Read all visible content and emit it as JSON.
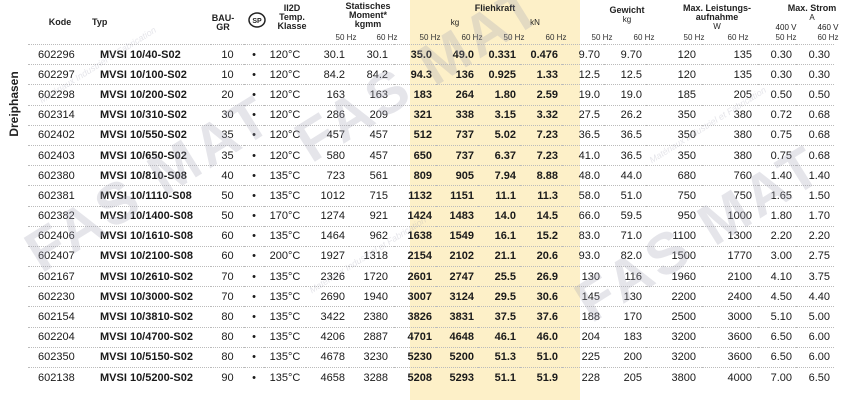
{
  "side_label": "Dreiphasen",
  "headers": {
    "kode": "Kode",
    "typ": "Typ",
    "bau": "BAU-\nGR",
    "atex": "II2D\nTemp.\nKlasse",
    "static": "Statisches\nMoment*\nkgmm",
    "flieh": "Fliehkraft",
    "kg": "kg",
    "kn": "kN",
    "gewicht": "Gewicht",
    "gewicht_unit": "kg",
    "leistung": "Max. Leistungs-\naufnahme",
    "leistung_unit": "W",
    "strom": "Max. Strom",
    "strom_unit": "A",
    "v400": "400 V",
    "v460": "460 V",
    "hz50": "50 Hz",
    "hz60": "60 Hz"
  },
  "cert_icon": "csa-certification-icon",
  "watermark": "FAS MAT",
  "watermark_small": "Matériaux Industriel et Fabrication",
  "rows": [
    [
      "602296",
      "MVSI 10/40-S02",
      "10",
      "•",
      "120°C",
      "30.1",
      "30.1",
      "35.0",
      "49.0",
      "0.331",
      "0.476",
      "9.70",
      "9.70",
      "120",
      "135",
      "0.30",
      "0.30"
    ],
    [
      "602297",
      "MVSI 10/100-S02",
      "10",
      "•",
      "120°C",
      "84.2",
      "84.2",
      "94.3",
      "136",
      "0.925",
      "1.33",
      "12.5",
      "12.5",
      "120",
      "135",
      "0.30",
      "0.30"
    ],
    [
      "602298",
      "MVSI 10/200-S02",
      "20",
      "•",
      "120°C",
      "163",
      "163",
      "183",
      "264",
      "1.80",
      "2.59",
      "19.0",
      "19.0",
      "185",
      "205",
      "0.50",
      "0.50"
    ],
    [
      "602314",
      "MVSI 10/310-S02",
      "30",
      "•",
      "120°C",
      "286",
      "209",
      "321",
      "338",
      "3.15",
      "3.32",
      "27.5",
      "26.2",
      "350",
      "380",
      "0.72",
      "0.68"
    ],
    [
      "602402",
      "MVSI 10/550-S02",
      "35",
      "•",
      "120°C",
      "457",
      "457",
      "512",
      "737",
      "5.02",
      "7.23",
      "36.5",
      "36.5",
      "350",
      "380",
      "0.75",
      "0.68"
    ],
    [
      "602403",
      "MVSI 10/650-S02",
      "35",
      "•",
      "120°C",
      "580",
      "457",
      "650",
      "737",
      "6.37",
      "7.23",
      "41.0",
      "36.5",
      "350",
      "380",
      "0.75",
      "0.68"
    ],
    [
      "602380",
      "MVSI 10/810-S08",
      "40",
      "•",
      "135°C",
      "723",
      "561",
      "809",
      "905",
      "7.94",
      "8.88",
      "48.0",
      "44.0",
      "680",
      "760",
      "1.40",
      "1.40"
    ],
    [
      "602381",
      "MVSI 10/1110-S08",
      "50",
      "•",
      "135°C",
      "1012",
      "715",
      "1132",
      "1151",
      "11.1",
      "11.3",
      "58.0",
      "51.0",
      "750",
      "750",
      "1.65",
      "1.50"
    ],
    [
      "602382",
      "MVSI 10/1400-S08",
      "50",
      "•",
      "170°C",
      "1274",
      "921",
      "1424",
      "1483",
      "14.0",
      "14.5",
      "66.0",
      "59.5",
      "950",
      "1000",
      "1.80",
      "1.70"
    ],
    [
      "602406",
      "MVSI 10/1610-S08",
      "60",
      "•",
      "135°C",
      "1464",
      "962",
      "1638",
      "1549",
      "16.1",
      "15.2",
      "83.0",
      "71.0",
      "1100",
      "1300",
      "2.20",
      "2.20"
    ],
    [
      "602407",
      "MVSI 10/2100-S08",
      "60",
      "•",
      "200°C",
      "1927",
      "1318",
      "2154",
      "2102",
      "21.1",
      "20.6",
      "93.0",
      "82.0",
      "1500",
      "1770",
      "3.00",
      "2.75"
    ],
    [
      "602167",
      "MVSI 10/2610-S02",
      "70",
      "•",
      "135°C",
      "2326",
      "1720",
      "2601",
      "2747",
      "25.5",
      "26.9",
      "130",
      "116",
      "1960",
      "2100",
      "4.10",
      "3.75"
    ],
    [
      "602230",
      "MVSI 10/3000-S02",
      "70",
      "•",
      "135°C",
      "2690",
      "1940",
      "3007",
      "3124",
      "29.5",
      "30.6",
      "145",
      "130",
      "2200",
      "2400",
      "4.50",
      "4.40"
    ],
    [
      "602154",
      "MVSI 10/3810-S02",
      "80",
      "•",
      "135°C",
      "3422",
      "2380",
      "3826",
      "3831",
      "37.5",
      "37.6",
      "188",
      "170",
      "2500",
      "3000",
      "5.10",
      "5.00"
    ],
    [
      "602204",
      "MVSI 10/4700-S02",
      "80",
      "•",
      "135°C",
      "4206",
      "2887",
      "4701",
      "4648",
      "46.1",
      "46.0",
      "204",
      "183",
      "3200",
      "3600",
      "6.50",
      "6.00"
    ],
    [
      "602350",
      "MVSI 10/5150-S02",
      "80",
      "•",
      "135°C",
      "4678",
      "3230",
      "5230",
      "5200",
      "51.3",
      "51.0",
      "225",
      "200",
      "3200",
      "3600",
      "6.50",
      "6.00"
    ],
    [
      "602138",
      "MVSI 10/5200-S02",
      "90",
      "•",
      "135°C",
      "4658",
      "3288",
      "5208",
      "5293",
      "51.1",
      "51.9",
      "228",
      "205",
      "3800",
      "4000",
      "7.00",
      "6.50"
    ]
  ]
}
